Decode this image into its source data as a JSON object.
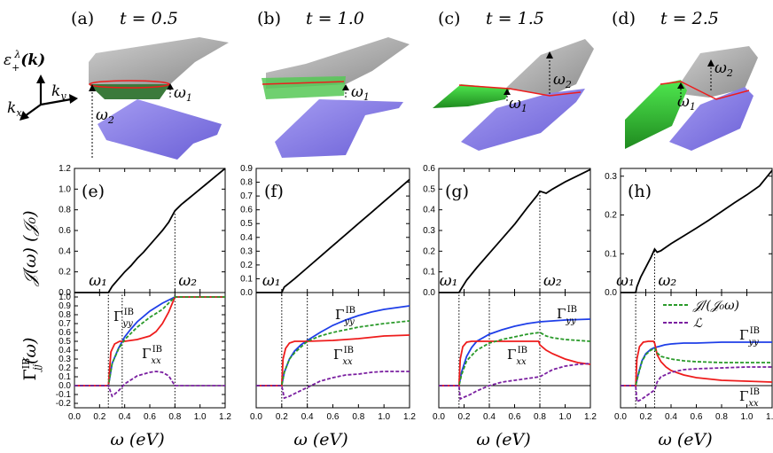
{
  "top_panels": [
    {
      "label": "(a)",
      "t_text": "t = 0.5"
    },
    {
      "label": "(b)",
      "t_text": "t = 1.0"
    },
    {
      "label": "(c)",
      "t_text": "t = 1.5"
    },
    {
      "label": "(d)",
      "t_text": "t = 2.5"
    }
  ],
  "band_labels": {
    "epsilon": "ε",
    "epsilon_sup": "λ",
    "epsilon_sub": "+",
    "epsilon_arg": "(k)",
    "ky": "k",
    "ky_sub": "y",
    "kx": "k",
    "kx_sub": "x",
    "w1": "ω",
    "w1_sub": "1",
    "w2": "ω",
    "w2_sub": "2"
  },
  "colors": {
    "upper_band": "#9e9e9e",
    "lower_band": "#7a6ee0",
    "green_band": "#2fd12f",
    "red": "#ee1c1c",
    "blue": "#1f3fe8",
    "green_dash": "#2a9a2a",
    "purple_dash": "#7a1fa0"
  },
  "axes_text": {
    "xlabel": "ω  (eV)",
    "J_ylabel": "𝒥(ω)  (𝒥₀)",
    "G_ylabel": "Γ",
    "G_ylabel_sup": "IB",
    "G_ylabel_sub": "jj",
    "G_ylabel_arg": "(ω)",
    "legend_dash_green": "𝒥/(𝒥₀ω)",
    "legend_dash_purple": "ℒ",
    "Gyy": "Γ",
    "Gyy_sup": "IB",
    "Gyy_sub": "yy",
    "Gxx": "Γ",
    "Gxx_sup": "IB",
    "Gxx_sub": "xx"
  },
  "chart_data": [
    {
      "type": "line",
      "panel": "(e)",
      "xlim": [
        0,
        1.2
      ],
      "ylim": [
        0,
        1.2
      ],
      "yticks": [
        "0.0",
        "0.2",
        "0.4",
        "0.6",
        "0.8",
        "1.0",
        "1.2"
      ],
      "omega1": 0.27,
      "omega2": 0.8,
      "series": [
        {
          "name": "J",
          "x": [
            0,
            0.27,
            0.3,
            0.35,
            0.4,
            0.45,
            0.5,
            0.55,
            0.6,
            0.65,
            0.7,
            0.75,
            0.8,
            0.85,
            0.9,
            0.95,
            1.0,
            1.05,
            1.1,
            1.15,
            1.2
          ],
          "y": [
            0,
            0,
            0.06,
            0.13,
            0.2,
            0.26,
            0.33,
            0.39,
            0.46,
            0.53,
            0.6,
            0.68,
            0.79,
            0.85,
            0.9,
            0.95,
            1.0,
            1.05,
            1.1,
            1.15,
            1.2
          ]
        }
      ],
      "w1_label": "ω₁",
      "w2_label": "ω₂"
    },
    {
      "type": "line",
      "panel": "(f)",
      "xlim": [
        0,
        1.2
      ],
      "ylim": [
        0,
        0.9
      ],
      "yticks": [
        "0.0",
        "0.1",
        "0.2",
        "0.3",
        "0.4",
        "0.5",
        "0.6",
        "0.7",
        "0.8",
        "0.9"
      ],
      "omega1": 0.2,
      "series": [
        {
          "name": "J",
          "x": [
            0,
            0.2,
            0.22,
            0.3,
            0.4,
            0.5,
            0.6,
            0.7,
            0.8,
            0.9,
            1.0,
            1.1,
            1.2
          ],
          "y": [
            0,
            0,
            0.04,
            0.1,
            0.18,
            0.26,
            0.34,
            0.42,
            0.5,
            0.58,
            0.66,
            0.74,
            0.82
          ]
        }
      ],
      "w1_label": "ω₁"
    },
    {
      "type": "line",
      "panel": "(g)",
      "xlim": [
        0,
        1.2
      ],
      "ylim": [
        0,
        0.6
      ],
      "yticks": [
        "0.0",
        "0.1",
        "0.2",
        "0.3",
        "0.4",
        "0.5",
        "0.6"
      ],
      "omega1": 0.16,
      "omega2": 0.8,
      "series": [
        {
          "name": "J",
          "x": [
            0,
            0.16,
            0.18,
            0.22,
            0.3,
            0.4,
            0.5,
            0.6,
            0.7,
            0.78,
            0.8,
            0.85,
            0.9,
            1.0,
            1.1,
            1.2
          ],
          "y": [
            0,
            0,
            0.02,
            0.06,
            0.12,
            0.19,
            0.26,
            0.33,
            0.41,
            0.47,
            0.49,
            0.48,
            0.5,
            0.535,
            0.565,
            0.595
          ]
        }
      ],
      "w1_label": "ω₁",
      "w2_label": "ω₂"
    },
    {
      "type": "line",
      "panel": "(h)",
      "xlim": [
        0,
        1.2
      ],
      "ylim": [
        0,
        0.32
      ],
      "yticks": [
        "0.0",
        "0.1",
        "0.2",
        "0.3"
      ],
      "omega1": 0.12,
      "omega2": 0.27,
      "series": [
        {
          "name": "J",
          "x": [
            0,
            0.12,
            0.13,
            0.16,
            0.2,
            0.24,
            0.27,
            0.29,
            0.32,
            0.4,
            0.5,
            0.6,
            0.7,
            0.8,
            0.9,
            1.0,
            1.1,
            1.2
          ],
          "y": [
            0,
            0,
            0.015,
            0.04,
            0.065,
            0.09,
            0.112,
            0.104,
            0.108,
            0.126,
            0.146,
            0.166,
            0.187,
            0.209,
            0.231,
            0.252,
            0.275,
            0.315
          ]
        }
      ],
      "w1_label": "ω₁",
      "w2_label": "ω₂"
    },
    {
      "type": "line",
      "panel": "e-bottom",
      "xlim": [
        0,
        1.2
      ],
      "ylim": [
        -0.25,
        1.05
      ],
      "yticks": [
        "-0.2",
        "-0.1",
        "0.0",
        "0.1",
        "0.2",
        "0.3",
        "0.4",
        "0.5",
        "0.6",
        "0.7",
        "0.8",
        "0.9",
        "1.0"
      ],
      "xticks": [
        "0.0",
        "0.2",
        "0.4",
        "0.6",
        "0.8",
        "1.0",
        "1.2"
      ],
      "omega1": 0.27,
      "omega2": 0.8,
      "omega_mid": 0.38,
      "series": [
        {
          "name": "Gyy (blue)",
          "x": [
            0,
            0.27,
            0.3,
            0.35,
            0.4,
            0.45,
            0.5,
            0.6,
            0.7,
            0.8,
            0.9,
            1.0,
            1.1,
            1.2
          ],
          "y": [
            0,
            0,
            0.25,
            0.42,
            0.55,
            0.64,
            0.72,
            0.84,
            0.93,
            1.0,
            1.0,
            1.0,
            1.0,
            1.0
          ]
        },
        {
          "name": "Gxx (red)",
          "x": [
            0,
            0.27,
            0.29,
            0.32,
            0.36,
            0.4,
            0.5,
            0.6,
            0.65,
            0.7,
            0.75,
            0.8,
            0.9,
            1.0,
            1.2
          ],
          "y": [
            0,
            0,
            0.38,
            0.47,
            0.5,
            0.5,
            0.52,
            0.56,
            0.61,
            0.7,
            0.83,
            1.0,
            1.0,
            1.0,
            1.0
          ]
        },
        {
          "name": "J/(J0 ω) (green dashed)",
          "x": [
            0,
            0.27,
            0.3,
            0.35,
            0.4,
            0.5,
            0.6,
            0.7,
            0.8,
            0.9,
            1.0,
            1.2
          ],
          "y": [
            0,
            0,
            0.25,
            0.41,
            0.52,
            0.66,
            0.77,
            0.86,
            1.0,
            1.0,
            1.0,
            1.0
          ]
        },
        {
          "name": "L (purple dashed)",
          "x": [
            0,
            0.27,
            0.3,
            0.35,
            0.4,
            0.5,
            0.6,
            0.65,
            0.7,
            0.75,
            0.8,
            0.85,
            1.0,
            1.2
          ],
          "y": [
            0,
            0,
            -0.12,
            -0.06,
            0.02,
            0.11,
            0.15,
            0.16,
            0.15,
            0.11,
            0.0,
            0.0,
            0.0,
            0.0
          ]
        }
      ]
    },
    {
      "type": "line",
      "panel": "f-bottom",
      "xlim": [
        0,
        1.2
      ],
      "ylim": [
        -0.25,
        1.05
      ],
      "xticks": [
        "0.0",
        "0.2",
        "0.4",
        "0.6",
        "0.8",
        "1.0",
        "1.2"
      ],
      "omega1": 0.2,
      "omega_mid": 0.4,
      "series": [
        {
          "name": "Gyy (blue)",
          "x": [
            0,
            0.2,
            0.22,
            0.26,
            0.3,
            0.35,
            0.4,
            0.5,
            0.6,
            0.7,
            0.8,
            0.9,
            1.0,
            1.1,
            1.2
          ],
          "y": [
            0,
            0,
            0.15,
            0.3,
            0.39,
            0.46,
            0.51,
            0.6,
            0.68,
            0.74,
            0.79,
            0.83,
            0.86,
            0.88,
            0.9
          ]
        },
        {
          "name": "Gxx (red)",
          "x": [
            0,
            0.2,
            0.21,
            0.23,
            0.26,
            0.3,
            0.4,
            0.6,
            0.8,
            1.0,
            1.2
          ],
          "y": [
            0,
            0,
            0.3,
            0.42,
            0.48,
            0.5,
            0.5,
            0.51,
            0.53,
            0.56,
            0.57
          ]
        },
        {
          "name": "J/(J0 ω) (green dashed)",
          "x": [
            0,
            0.2,
            0.22,
            0.26,
            0.3,
            0.4,
            0.5,
            0.6,
            0.8,
            1.0,
            1.2
          ],
          "y": [
            0,
            0,
            0.15,
            0.3,
            0.37,
            0.5,
            0.56,
            0.6,
            0.66,
            0.7,
            0.73
          ]
        },
        {
          "name": "L (purple dashed)",
          "x": [
            0,
            0.2,
            0.22,
            0.26,
            0.3,
            0.4,
            0.5,
            0.6,
            0.7,
            0.8,
            0.9,
            1.0,
            1.2
          ],
          "y": [
            0,
            0,
            -0.14,
            -0.12,
            -0.09,
            -0.02,
            0.05,
            0.09,
            0.12,
            0.13,
            0.15,
            0.16,
            0.16
          ]
        }
      ]
    },
    {
      "type": "line",
      "panel": "g-bottom",
      "xlim": [
        0,
        1.2
      ],
      "ylim": [
        -0.25,
        1.05
      ],
      "xticks": [
        "0.0",
        "0.2",
        "0.4",
        "0.6",
        "0.8",
        "1.0",
        "1.2"
      ],
      "omega1": 0.16,
      "omega_mid": 0.4,
      "omega2": 0.8,
      "series": [
        {
          "name": "Gyy (blue)",
          "x": [
            0,
            0.16,
            0.18,
            0.22,
            0.26,
            0.3,
            0.4,
            0.5,
            0.6,
            0.7,
            0.8,
            0.9,
            1.0,
            1.2
          ],
          "y": [
            0,
            0,
            0.15,
            0.33,
            0.43,
            0.5,
            0.58,
            0.63,
            0.67,
            0.7,
            0.72,
            0.73,
            0.74,
            0.75
          ]
        },
        {
          "name": "Gxx (red)",
          "x": [
            0,
            0.16,
            0.17,
            0.19,
            0.22,
            0.26,
            0.4,
            0.6,
            0.79,
            0.8,
            0.85,
            0.9,
            1.0,
            1.1,
            1.2
          ],
          "y": [
            0,
            0,
            0.3,
            0.44,
            0.49,
            0.5,
            0.5,
            0.5,
            0.5,
            0.46,
            0.4,
            0.36,
            0.3,
            0.26,
            0.24
          ]
        },
        {
          "name": "J/(J0 ω) (green dashed)",
          "x": [
            0,
            0.16,
            0.18,
            0.22,
            0.3,
            0.4,
            0.5,
            0.6,
            0.7,
            0.8,
            0.85,
            0.9,
            1.0,
            1.2
          ],
          "y": [
            0,
            0,
            0.12,
            0.28,
            0.4,
            0.48,
            0.52,
            0.55,
            0.58,
            0.6,
            0.56,
            0.54,
            0.52,
            0.5
          ]
        },
        {
          "name": "L (purple dashed)",
          "x": [
            0,
            0.16,
            0.17,
            0.2,
            0.25,
            0.3,
            0.4,
            0.5,
            0.6,
            0.7,
            0.8,
            0.85,
            0.9,
            1.0,
            1.1,
            1.2
          ],
          "y": [
            0,
            0,
            -0.15,
            -0.13,
            -0.1,
            -0.06,
            0.0,
            0.04,
            0.06,
            0.08,
            0.1,
            0.14,
            0.18,
            0.22,
            0.24,
            0.25
          ]
        }
      ]
    },
    {
      "type": "line",
      "panel": "h-bottom",
      "xlim": [
        0,
        1.2
      ],
      "ylim": [
        -0.25,
        1.05
      ],
      "xticks": [
        "0.0",
        "0.2",
        "0.4",
        "0.6",
        "0.8",
        "1.0",
        "1.2"
      ],
      "omega1": 0.12,
      "omega2": 0.27,
      "series": [
        {
          "name": "Gyy (blue)",
          "x": [
            0,
            0.12,
            0.14,
            0.17,
            0.2,
            0.24,
            0.27,
            0.3,
            0.35,
            0.4,
            0.5,
            0.6,
            0.8,
            1.0,
            1.2
          ],
          "y": [
            0,
            0,
            0.13,
            0.28,
            0.36,
            0.41,
            0.43,
            0.44,
            0.46,
            0.47,
            0.48,
            0.48,
            0.49,
            0.49,
            0.49
          ]
        },
        {
          "name": "Gxx (red)",
          "x": [
            0,
            0.12,
            0.13,
            0.15,
            0.18,
            0.22,
            0.26,
            0.27,
            0.29,
            0.32,
            0.36,
            0.4,
            0.5,
            0.6,
            0.8,
            1.0,
            1.2
          ],
          "y": [
            0,
            0,
            0.3,
            0.44,
            0.49,
            0.5,
            0.5,
            0.48,
            0.35,
            0.27,
            0.21,
            0.17,
            0.12,
            0.09,
            0.06,
            0.05,
            0.04
          ]
        },
        {
          "name": "J/(J0 ω) (green dashed)",
          "x": [
            0,
            0.12,
            0.14,
            0.17,
            0.2,
            0.24,
            0.27,
            0.29,
            0.32,
            0.4,
            0.5,
            0.6,
            0.8,
            1.0,
            1.2
          ],
          "y": [
            0,
            0,
            0.12,
            0.27,
            0.35,
            0.4,
            0.42,
            0.37,
            0.33,
            0.3,
            0.28,
            0.27,
            0.26,
            0.26,
            0.26
          ]
        },
        {
          "name": "L (purple dashed)",
          "x": [
            0,
            0.12,
            0.13,
            0.16,
            0.2,
            0.24,
            0.27,
            0.29,
            0.32,
            0.4,
            0.5,
            0.6,
            0.8,
            1.0,
            1.2
          ],
          "y": [
            0,
            0,
            -0.18,
            -0.16,
            -0.12,
            -0.08,
            -0.05,
            0.04,
            0.1,
            0.15,
            0.18,
            0.19,
            0.2,
            0.21,
            0.21
          ]
        }
      ]
    }
  ]
}
